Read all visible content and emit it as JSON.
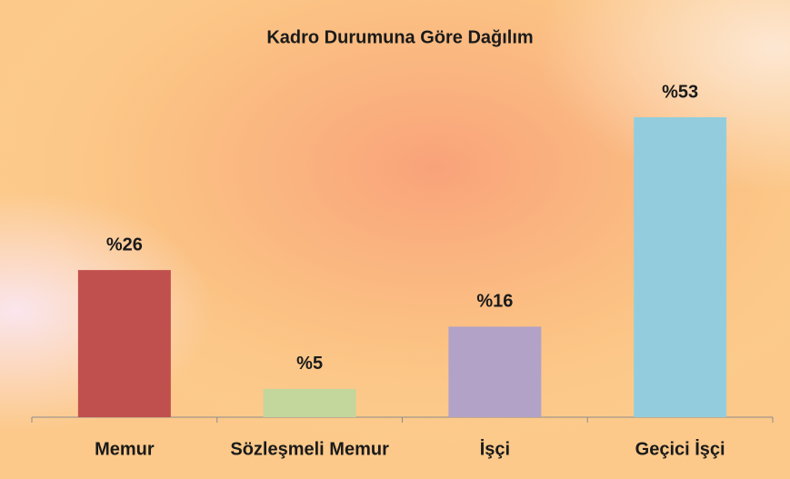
{
  "chart_data": {
    "type": "bar",
    "title": "Kadro Durumuna Göre Dağılım",
    "categories": [
      "Memur",
      "Sözleşmeli Memur",
      "İşçi",
      "Geçici İşçi"
    ],
    "values": [
      26,
      5,
      16,
      53
    ],
    "value_labels": [
      "%26",
      "%5",
      "%16",
      "%53"
    ],
    "colors": [
      "#c0504d",
      "#c3d69b",
      "#b2a2c7",
      "#93cddd"
    ]
  }
}
